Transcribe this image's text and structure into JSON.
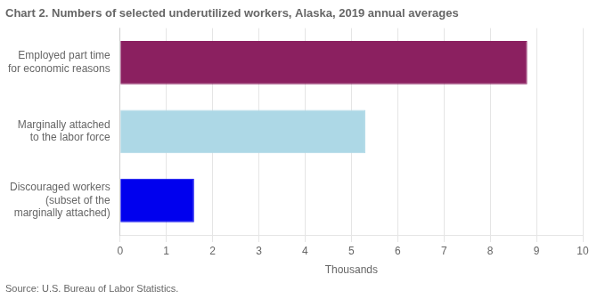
{
  "chart_data": {
    "type": "bar",
    "orientation": "horizontal",
    "title": "Chart 2. Numbers of selected underutilized workers, Alaska, 2019 annual averages",
    "categories": [
      "Discouraged workers\n(subset of the\nmarginally attached)",
      "Marginally attached\nto the labor force",
      "Employed part time\nfor economic reasons"
    ],
    "values": [
      1.6,
      5.3,
      8.8
    ],
    "colors": [
      "#0000ee",
      "#add8e6",
      "#8b2060"
    ],
    "xlabel": "Thousands",
    "xlim": [
      0,
      10
    ],
    "xticks": [
      0,
      1,
      2,
      3,
      4,
      5,
      6,
      7,
      8,
      9,
      10
    ],
    "grid": true,
    "annotations": [
      "Source: U.S. Bureau of Labor Statistics."
    ]
  }
}
